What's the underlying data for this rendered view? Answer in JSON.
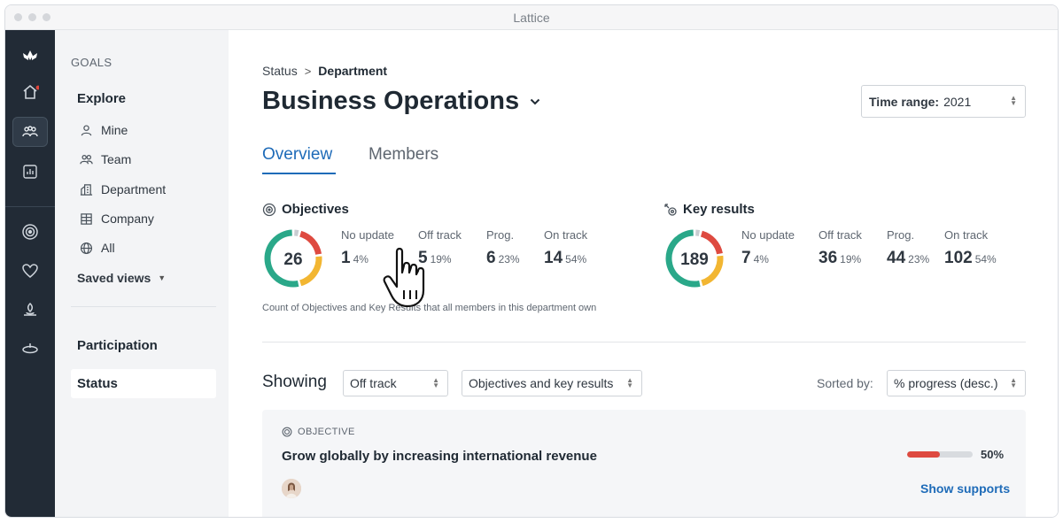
{
  "window": {
    "title": "Lattice"
  },
  "subnav": {
    "section": "GOALS",
    "explore": "Explore",
    "items": [
      {
        "label": "Mine",
        "icon": "person-icon"
      },
      {
        "label": "Team",
        "icon": "team-icon"
      },
      {
        "label": "Department",
        "icon": "department-icon"
      },
      {
        "label": "Company",
        "icon": "company-icon"
      },
      {
        "label": "All",
        "icon": "globe-icon"
      }
    ],
    "saved_views": "Saved views",
    "participation": "Participation",
    "status": "Status"
  },
  "breadcrumb": {
    "parent": "Status",
    "current": "Department"
  },
  "page": {
    "title": "Business Operations",
    "time_range_label": "Time range:",
    "time_range_value": "2021"
  },
  "tabs": [
    {
      "label": "Overview",
      "active": true
    },
    {
      "label": "Members",
      "active": false
    }
  ],
  "objectives": {
    "title": "Objectives",
    "total": "26",
    "stats": [
      {
        "label": "No update",
        "value": "1",
        "pct": "4%"
      },
      {
        "label": "Off track",
        "value": "5",
        "pct": "19%"
      },
      {
        "label": "Prog.",
        "value": "6",
        "pct": "23%"
      },
      {
        "label": "On track",
        "value": "14",
        "pct": "54%"
      }
    ]
  },
  "key_results": {
    "title": "Key results",
    "total": "189",
    "stats": [
      {
        "label": "No update",
        "value": "7",
        "pct": "4%"
      },
      {
        "label": "Off track",
        "value": "36",
        "pct": "19%"
      },
      {
        "label": "Prog.",
        "value": "44",
        "pct": "23%"
      },
      {
        "label": "On track",
        "value": "102",
        "pct": "54%"
      }
    ]
  },
  "note": "Count of Objectives and Key Results that all members in this department own",
  "filters": {
    "showing_label": "Showing",
    "status": "Off track",
    "type": "Objectives and key results",
    "sorted_label": "Sorted by:",
    "sort": "% progress (desc.)"
  },
  "card": {
    "tag": "OBJECTIVE",
    "title": "Grow globally by increasing international revenue",
    "progress": "50%",
    "progress_value": 0.5,
    "link": "Show supports"
  },
  "colors": {
    "accent": "#1e6bb8",
    "no_update": "#c9ccd1",
    "off_track": "#de4a40",
    "progress": "#f2b632",
    "on_track": "#2aa889"
  }
}
